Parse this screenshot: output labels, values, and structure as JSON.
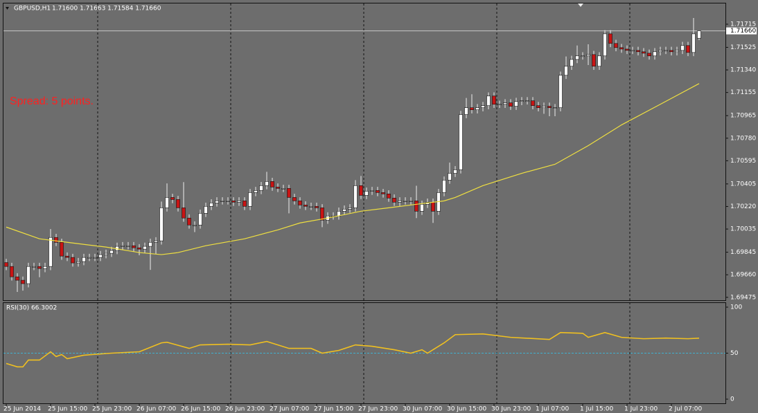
{
  "header": {
    "symbol": "GBPUSD,H1",
    "quote": "1.71600 1.71663 1.71584 1.71660"
  },
  "chart_data": [
    {
      "type": "candlestick",
      "annotation": "Spread: 5 points.",
      "annotation_color": "#ff2020",
      "up_color": "#ffffff",
      "down_color": "#c81414",
      "wick_color": "#f0f0f0",
      "open": [
        1.6976,
        1.69728,
        1.69643,
        1.69615,
        1.69587,
        1.69728,
        1.69728,
        1.69711,
        1.69728,
        1.69966,
        1.69926,
        1.69813,
        1.69802,
        1.69757,
        1.69768,
        1.69802,
        1.69802,
        1.69802,
        1.69825,
        1.69836,
        1.69859,
        1.69893,
        1.69898,
        1.69898,
        1.69881,
        1.6987,
        1.69893,
        1.69926,
        1.69938,
        1.70209,
        1.70294,
        1.70277,
        1.70209,
        1.70125,
        1.70068,
        1.70068,
        1.70164,
        1.70221,
        1.70249,
        1.70266,
        1.70266,
        1.70266,
        1.70255,
        1.70266,
        1.70221,
        1.70334,
        1.70351,
        1.70391,
        1.70425,
        1.70379,
        1.70368,
        1.70368,
        1.70294,
        1.70266,
        1.70232,
        1.70221,
        1.70221,
        1.70209,
        1.70108,
        1.70142,
        1.70142,
        1.70181,
        1.70198,
        1.70209,
        1.70391,
        1.70311,
        1.70345,
        1.70351,
        1.70334,
        1.70323,
        1.70289,
        1.70255,
        1.70266,
        1.70266,
        1.70266,
        1.70181,
        1.70238,
        1.70255,
        1.70181,
        1.70334,
        1.70436,
        1.70492,
        1.70521,
        1.70974,
        1.7103,
        1.71013,
        1.7103,
        1.71047,
        1.71126,
        1.71058,
        1.71058,
        1.7107,
        1.71042,
        1.71081,
        1.71087,
        1.71087,
        1.71047,
        1.7103,
        1.71042,
        1.7103,
        1.7103,
        1.71296,
        1.7137,
        1.71426,
        1.71455,
        1.71455,
        1.71466,
        1.7137,
        1.71455,
        1.71636,
        1.71557,
        1.71523,
        1.71511,
        1.715,
        1.715,
        1.71489,
        1.71477,
        1.71455,
        1.71489,
        1.715,
        1.715,
        1.71489,
        1.715,
        1.7154,
        1.71483,
        1.716
      ],
      "high": [
        1.6979,
        1.69758,
        1.69673,
        1.69645,
        1.69758,
        1.69758,
        1.69758,
        1.69758,
        1.70035,
        1.69996,
        1.69956,
        1.69843,
        1.69832,
        1.69798,
        1.69832,
        1.69832,
        1.69832,
        1.69855,
        1.69866,
        1.69889,
        1.69923,
        1.69928,
        1.69928,
        1.69928,
        1.69911,
        1.69923,
        1.69956,
        1.69968,
        1.7026,
        1.70409,
        1.70324,
        1.70307,
        1.7042,
        1.70155,
        1.70098,
        1.70194,
        1.70251,
        1.70279,
        1.70296,
        1.70296,
        1.70296,
        1.70296,
        1.70296,
        1.70296,
        1.70364,
        1.70381,
        1.70421,
        1.70504,
        1.70455,
        1.70409,
        1.70398,
        1.70398,
        1.70324,
        1.70296,
        1.70262,
        1.70251,
        1.70251,
        1.70239,
        1.70172,
        1.70172,
        1.70211,
        1.70228,
        1.70239,
        1.70436,
        1.7047,
        1.70375,
        1.70381,
        1.70381,
        1.70364,
        1.70353,
        1.70319,
        1.70296,
        1.70296,
        1.70296,
        1.7039,
        1.70268,
        1.70285,
        1.70285,
        1.70364,
        1.70466,
        1.7058,
        1.70551,
        1.71004,
        1.7111,
        1.7114,
        1.7106,
        1.71077,
        1.71155,
        1.71156,
        1.71088,
        1.711,
        1.711,
        1.71111,
        1.71117,
        1.71117,
        1.71117,
        1.71077,
        1.71072,
        1.71072,
        1.7106,
        1.71326,
        1.7145,
        1.71456,
        1.7154,
        1.71485,
        1.7155,
        1.71496,
        1.71485,
        1.71666,
        1.71666,
        1.71587,
        1.71553,
        1.71541,
        1.7153,
        1.7153,
        1.71519,
        1.71507,
        1.71519,
        1.7153,
        1.7153,
        1.7153,
        1.7153,
        1.7157,
        1.7157,
        1.71766,
        1.71663
      ],
      "low": [
        1.69698,
        1.69613,
        1.69519,
        1.6953,
        1.69557,
        1.69698,
        1.6964,
        1.69681,
        1.69698,
        1.69896,
        1.69783,
        1.69772,
        1.69727,
        1.69727,
        1.69738,
        1.69772,
        1.69772,
        1.69772,
        1.69795,
        1.69806,
        1.69829,
        1.69863,
        1.69868,
        1.69851,
        1.6982,
        1.6984,
        1.697,
        1.6983,
        1.69908,
        1.70179,
        1.70247,
        1.70179,
        1.70095,
        1.70038,
        1.7001,
        1.70038,
        1.70134,
        1.70191,
        1.70219,
        1.70236,
        1.70236,
        1.70225,
        1.70225,
        1.70191,
        1.70191,
        1.70304,
        1.70321,
        1.70361,
        1.70349,
        1.70338,
        1.70338,
        1.70164,
        1.70236,
        1.70202,
        1.70191,
        1.70191,
        1.70179,
        1.7005,
        1.70078,
        1.70112,
        1.70112,
        1.70151,
        1.70168,
        1.70179,
        1.70281,
        1.70281,
        1.70315,
        1.70304,
        1.70293,
        1.70259,
        1.70225,
        1.70225,
        1.70236,
        1.70236,
        1.70125,
        1.70151,
        1.70208,
        1.70085,
        1.70151,
        1.70304,
        1.70406,
        1.70462,
        1.70491,
        1.70944,
        1.70983,
        1.70983,
        1.71,
        1.71017,
        1.71028,
        1.71028,
        1.71028,
        1.71012,
        1.71012,
        1.71051,
        1.71057,
        1.71017,
        1.71,
        1.7098,
        1.7096,
        1.7096,
        1.71,
        1.71266,
        1.7134,
        1.71396,
        1.71425,
        1.7138,
        1.7134,
        1.7134,
        1.71425,
        1.71527,
        1.71493,
        1.71481,
        1.7147,
        1.7147,
        1.71459,
        1.71447,
        1.71425,
        1.71425,
        1.71459,
        1.7147,
        1.71459,
        1.71459,
        1.7147,
        1.71453,
        1.71453,
        1.71584
      ],
      "close": [
        1.69728,
        1.69643,
        1.69615,
        1.69587,
        1.69728,
        1.69728,
        1.69711,
        1.69728,
        1.69966,
        1.69926,
        1.69813,
        1.69802,
        1.69757,
        1.69768,
        1.69802,
        1.69802,
        1.69802,
        1.69825,
        1.69836,
        1.69859,
        1.69893,
        1.69898,
        1.69898,
        1.69881,
        1.6987,
        1.69893,
        1.69926,
        1.69938,
        1.70209,
        1.70294,
        1.70277,
        1.70209,
        1.70125,
        1.70068,
        1.70068,
        1.70164,
        1.70221,
        1.70249,
        1.70266,
        1.70266,
        1.70266,
        1.70255,
        1.70266,
        1.70221,
        1.70334,
        1.70351,
        1.70391,
        1.70425,
        1.70379,
        1.70368,
        1.70368,
        1.70294,
        1.70266,
        1.70232,
        1.70221,
        1.70221,
        1.70209,
        1.70108,
        1.70142,
        1.70142,
        1.70181,
        1.70198,
        1.70209,
        1.70391,
        1.70311,
        1.70345,
        1.70351,
        1.70334,
        1.70323,
        1.70289,
        1.70255,
        1.70266,
        1.70266,
        1.70266,
        1.70181,
        1.70238,
        1.70255,
        1.70181,
        1.70334,
        1.70436,
        1.70492,
        1.70521,
        1.70974,
        1.7103,
        1.71013,
        1.7103,
        1.71047,
        1.71126,
        1.71058,
        1.71058,
        1.7107,
        1.71042,
        1.71081,
        1.71087,
        1.71087,
        1.71047,
        1.7103,
        1.71042,
        1.7103,
        1.7103,
        1.71296,
        1.7137,
        1.71426,
        1.71455,
        1.71455,
        1.71466,
        1.7137,
        1.71455,
        1.71636,
        1.71557,
        1.71523,
        1.71511,
        1.715,
        1.715,
        1.71489,
        1.71477,
        1.71455,
        1.71489,
        1.715,
        1.715,
        1.71489,
        1.715,
        1.7154,
        1.71483,
        1.71636,
        1.7166
      ],
      "overlays": [
        {
          "color": "#f0e040",
          "x": [
            0,
            6,
            11,
            18,
            24,
            28,
            31,
            36,
            43,
            49,
            53,
            58,
            64,
            69,
            74,
            79,
            81,
            86,
            93,
            99,
            105,
            111,
            118,
            125
          ],
          "values": [
            1.70051,
            1.69955,
            1.69926,
            1.69887,
            1.69842,
            1.69825,
            1.69842,
            1.69898,
            1.69955,
            1.70028,
            1.70085,
            1.70125,
            1.70181,
            1.70209,
            1.70238,
            1.70266,
            1.70294,
            1.70391,
            1.70492,
            1.70566,
            1.70719,
            1.70889,
            1.71058,
            1.71228
          ]
        }
      ],
      "price_line": {
        "value": 1.7166,
        "label": "1.71660"
      },
      "ylim": [
        1.69451,
        1.71885
      ],
      "yticks": [
        1.71715,
        1.71525,
        {
          "value": 1.7134,
          "label": "1.71340"
        },
        1.71155,
        1.70965,
        {
          "value": 1.7078,
          "label": "1.70780"
        },
        1.70595,
        1.70405,
        {
          "value": 1.7022,
          "label": "1.70220"
        },
        1.70035,
        1.69845,
        {
          "value": 1.6966,
          "label": "1.69660"
        },
        1.69475
      ]
    },
    {
      "type": "line",
      "title": "RSI(30) 66.3002",
      "color": "#f0c020",
      "level": 50,
      "level_color": "#40b0d0",
      "x": [
        0,
        2,
        3,
        4,
        6,
        8,
        9,
        10,
        11,
        14,
        19,
        24,
        28,
        29,
        33,
        35,
        40,
        44,
        47,
        51,
        55,
        57,
        60,
        63,
        66,
        70,
        73,
        75,
        76,
        79,
        81,
        86,
        91,
        98,
        100,
        104,
        105,
        108,
        111,
        115,
        119,
        123,
        125
      ],
      "values": [
        38.8,
        35.1,
        35.1,
        42.5,
        42.5,
        51.5,
        46.3,
        48.5,
        44.0,
        47.8,
        50,
        51.5,
        61.2,
        61.9,
        55.2,
        59.0,
        59.7,
        59.0,
        62.7,
        55.2,
        55.2,
        50,
        53.0,
        59.0,
        57.5,
        53.7,
        50,
        53.7,
        50,
        61.2,
        70.1,
        70.9,
        67.2,
        64.9,
        72.4,
        71.6,
        67.2,
        72.4,
        67.2,
        65.7,
        66.4,
        65.7,
        66.3002
      ],
      "ylim": [
        -4.5,
        104.5
      ],
      "yticks": [
        100,
        50,
        0
      ],
      "xticks": [
        {
          "value": 0,
          "label": "25 Jun 2014"
        },
        {
          "value": 8,
          "label": "25 Jun 15:00"
        },
        {
          "value": 16,
          "label": "25 Jun 23:00"
        },
        {
          "value": 24,
          "label": "26 Jun 07:00"
        },
        {
          "value": 32,
          "label": "26 Jun 15:00"
        },
        {
          "value": 40,
          "label": "26 Jun 23:00"
        },
        {
          "value": 48,
          "label": "27 Jun 07:00"
        },
        {
          "value": 56,
          "label": "27 Jun 15:00"
        },
        {
          "value": 64,
          "label": "27 Jun 23:00"
        },
        {
          "value": 72,
          "label": "30 Jun 07:00"
        },
        {
          "value": 80,
          "label": "30 Jun 15:00"
        },
        {
          "value": 88,
          "label": "30 Jun 23:00"
        },
        {
          "value": 96,
          "label": "1 Jul 07:00"
        },
        {
          "value": 104,
          "label": "1 Jul 15:00"
        },
        {
          "value": 112,
          "label": "1 Jul 23:00"
        },
        {
          "value": 120,
          "label": "2 Jul 07:00"
        }
      ]
    }
  ]
}
